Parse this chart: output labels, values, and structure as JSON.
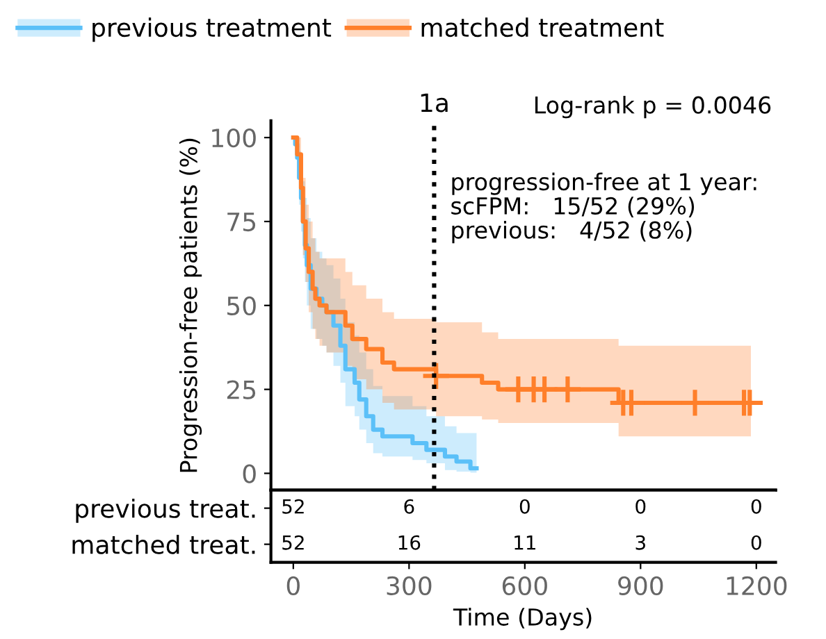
{
  "chart_data": [
    {
      "type": "step",
      "ylabel": "Progression-free patients (%)",
      "xlim": [
        -58,
        1250
      ],
      "ylim": [
        -5,
        105
      ],
      "xticks": [
        0,
        300,
        600,
        900,
        1200
      ],
      "yticks": [
        0,
        25,
        50,
        75,
        100
      ],
      "tick_labels": "y",
      "grid": false,
      "legend": "top",
      "series": [
        {
          "name": "previous treatment",
          "color": "#5bc0f8",
          "x": [
            0,
            5,
            10,
            15,
            20,
            25,
            30,
            35,
            45,
            60,
            75,
            86,
            104,
            122,
            135,
            159,
            171,
            189,
            207,
            231,
            309,
            345,
            393,
            423,
            459,
            475
          ],
          "values": [
            100,
            98,
            94,
            88,
            82,
            75,
            68,
            62,
            55,
            52,
            50,
            48,
            44,
            38,
            31,
            27,
            22,
            17,
            13,
            11,
            9,
            7,
            5,
            3.5,
            1.5,
            1.5
          ],
          "lower": [
            100,
            95,
            88,
            80,
            72,
            64,
            57,
            50,
            43,
            40,
            38,
            36,
            32,
            27,
            20,
            17,
            13,
            9,
            6,
            5,
            4,
            3,
            1,
            0.5,
            0.2,
            0.2
          ],
          "upper": [
            100,
            100,
            100,
            96,
            92,
            87,
            82,
            76,
            70,
            66,
            64,
            62,
            58,
            52,
            45,
            41,
            36,
            31,
            26,
            23,
            20,
            17,
            14,
            12,
            12,
            12
          ]
        },
        {
          "name": "matched treatment",
          "color": "#ff7f2a",
          "x": [
            0,
            10,
            20,
            25,
            32,
            40,
            50,
            57,
            68,
            86,
            135,
            153,
            189,
            231,
            261,
            370,
            489,
            531,
            843,
            1186
          ],
          "values": [
            100,
            95,
            85,
            75,
            67,
            60,
            55,
            52,
            50,
            48,
            44,
            40,
            37,
            33,
            31,
            29,
            27,
            25,
            21,
            21
          ],
          "lower": [
            100,
            88,
            75,
            65,
            57,
            48,
            43,
            40,
            38,
            36,
            32,
            28,
            25,
            21,
            19,
            17,
            16,
            15,
            11,
            11
          ],
          "upper": [
            100,
            100,
            95,
            88,
            80,
            75,
            70,
            66,
            64,
            64,
            60,
            56,
            52,
            48,
            46,
            45,
            42,
            40,
            38,
            38
          ]
        },
        {
          "type": "scatter",
          "marker": "cross",
          "color": "#ff7f2a",
          "x": [
            370,
            583,
            623,
            651,
            711,
            855,
            876,
            1041,
            1168,
            1183
          ],
          "values": [
            29,
            25,
            25,
            25,
            25,
            21,
            21,
            21,
            21,
            21
          ]
        }
      ],
      "ref_lines": [
        {
          "axis": "x",
          "value": 365,
          "label": "1a",
          "color": "#000000",
          "line_style": "dotted"
        }
      ],
      "annotations": [
        "Log-rank p = 0.0046",
        "progression-free at 1 year:\nscFPM:   15/52 (29%)\nprevious:   4/52 (8%)"
      ]
    },
    {
      "type": "heatmap",
      "x": [
        0,
        300,
        600,
        900,
        1200
      ],
      "xlim": [
        -58,
        1250
      ],
      "xticks": [
        0,
        300,
        600,
        900,
        1200
      ],
      "xlabel": "Time (Days)",
      "data_labels": true,
      "y_categories": [
        "previous treat.",
        "matched treat."
      ],
      "cells": [
        [
          52,
          6,
          0,
          0,
          0
        ],
        [
          52,
          16,
          11,
          3,
          0
        ]
      ]
    }
  ]
}
